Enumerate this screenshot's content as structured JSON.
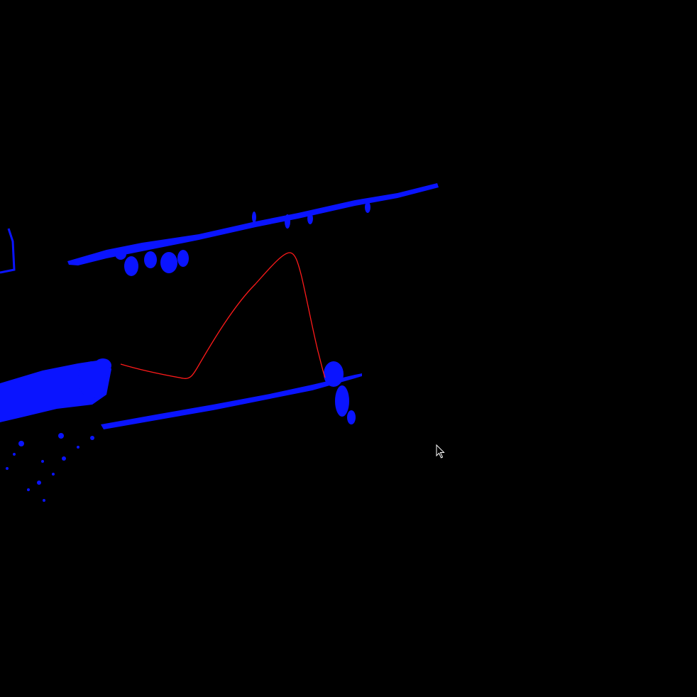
{
  "viewer": {
    "background_color": "#000000",
    "point_cloud_color": "#0a14ff",
    "trajectory_color": "#ff1a1a",
    "cursor_icon": "arrow-pointer-icon"
  }
}
